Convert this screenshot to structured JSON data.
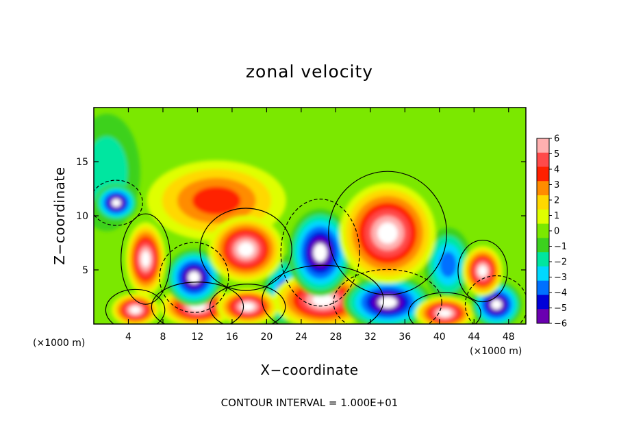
{
  "chart_data": {
    "type": "heatmap",
    "title": "zonal velocity",
    "xlabel": "X−coordinate",
    "ylabel": "Z−coordinate",
    "x_unit_label": "(×1000 m)",
    "y_unit_label": "(×1000 m)",
    "xlim": [
      0,
      50
    ],
    "ylim": [
      0,
      20
    ],
    "x_ticks": [
      4,
      8,
      12,
      16,
      20,
      24,
      28,
      32,
      36,
      40,
      44,
      48
    ],
    "y_ticks": [
      5,
      10,
      15
    ],
    "colorbar": {
      "levels": [
        6,
        5,
        4,
        3,
        2,
        1,
        0,
        -1,
        -2,
        -3,
        -4,
        -5,
        -6
      ],
      "tick_labels": [
        "6",
        "5",
        "4",
        "3",
        "2",
        "1",
        "0",
        "−1",
        "−2",
        "−3",
        "−4",
        "−5",
        "−6"
      ],
      "colors": [
        "#ffb0b0",
        "#ff4a4a",
        "#ff2000",
        "#ff8c00",
        "#ffd800",
        "#dfff00",
        "#7be800",
        "#3cd11e",
        "#00e6a0",
        "#00d8ff",
        "#0070ff",
        "#0000d8",
        "#6a00b0"
      ]
    },
    "grid": false,
    "annotation": "CONTOUR INTERVAL = 1.000E+01",
    "features": [
      {
        "x": 26.5,
        "z": 2.2,
        "rx": 3.7,
        "rz": 1.7,
        "value": 7
      },
      {
        "x": 34.0,
        "z": 2.0,
        "rx": 3.3,
        "rz": 1.6,
        "value": -7
      },
      {
        "x": 12.0,
        "z": 1.6,
        "rx": 2.8,
        "rz": 1.2,
        "value": 7
      },
      {
        "x": 4.8,
        "z": 1.3,
        "rx": 1.8,
        "rz": 1.0,
        "value": 7
      },
      {
        "x": 17.8,
        "z": 1.6,
        "rx": 2.3,
        "rz": 1.1,
        "value": 7
      },
      {
        "x": 40.6,
        "z": 1.0,
        "rx": 2.2,
        "rz": 1.0,
        "value": 7
      },
      {
        "x": 46.6,
        "z": 1.8,
        "rx": 1.9,
        "rz": 1.4,
        "value": -7
      },
      {
        "x": 6.0,
        "z": 6.0,
        "rx": 1.5,
        "rz": 2.2,
        "value": 7
      },
      {
        "x": 2.6,
        "z": 11.2,
        "rx": 1.6,
        "rz": 1.1,
        "value": -7
      },
      {
        "x": 11.6,
        "z": 4.3,
        "rx": 2.1,
        "rz": 1.7,
        "value": -7
      },
      {
        "x": 17.6,
        "z": 6.9,
        "rx": 2.8,
        "rz": 2.0,
        "value": 7
      },
      {
        "x": 26.2,
        "z": 6.6,
        "rx": 2.4,
        "rz": 2.6,
        "value": -7
      },
      {
        "x": 34.0,
        "z": 8.4,
        "rx": 3.6,
        "rz": 3.0,
        "value": 7
      },
      {
        "x": 45.0,
        "z": 4.9,
        "rx": 1.5,
        "rz": 1.5,
        "value": 7
      },
      {
        "x": 14.2,
        "z": 11.4,
        "rx": 5.2,
        "rz": 2.4,
        "value": 4
      },
      {
        "x": 41.0,
        "z": 5.5,
        "rx": 1.8,
        "rz": 2.2,
        "value": -4
      },
      {
        "x": 22.0,
        "z": 3.0,
        "rx": 1.6,
        "rz": 2.2,
        "value": -4
      },
      {
        "x": 1.5,
        "z": 14.0,
        "rx": 2.5,
        "rz": 3.5,
        "value": -2
      }
    ]
  }
}
